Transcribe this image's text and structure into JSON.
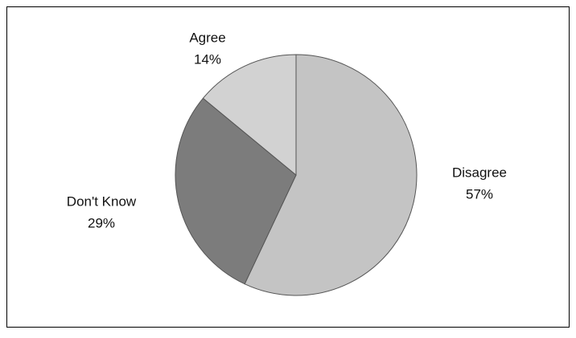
{
  "chart_data": {
    "type": "pie",
    "categories": [
      "Disagree",
      "Don't Know",
      "Agree"
    ],
    "values": [
      57,
      29,
      14
    ],
    "value_labels": [
      "57%",
      "29%",
      "14%"
    ],
    "colors": [
      "#c4c4c4",
      "#7c7c7c",
      "#d2d2d2"
    ]
  }
}
